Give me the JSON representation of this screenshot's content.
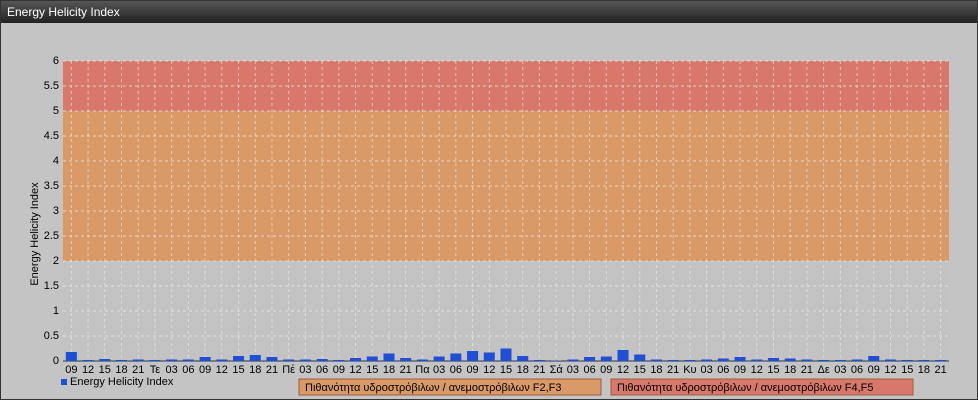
{
  "chart_data": {
    "type": "bar",
    "title": "Energy Helicity Index",
    "ylabel": "Energy Helicity Index",
    "categories": [
      "09",
      "12",
      "15",
      "18",
      "21",
      "Τε",
      "03",
      "06",
      "09",
      "12",
      "15",
      "18",
      "21",
      "Πέ",
      "03",
      "06",
      "09",
      "12",
      "15",
      "18",
      "21",
      "Πα",
      "03",
      "06",
      "09",
      "12",
      "15",
      "18",
      "21",
      "Σά",
      "03",
      "06",
      "09",
      "12",
      "15",
      "18",
      "21",
      "Κυ",
      "03",
      "06",
      "09",
      "12",
      "15",
      "18",
      "21",
      "Δε",
      "03",
      "06",
      "09",
      "12",
      "15",
      "18",
      "21"
    ],
    "series": [
      {
        "name": "Energy Helicity Index",
        "color": "#1f4fd8",
        "values": [
          0.18,
          0.02,
          0.04,
          0.02,
          0.03,
          0.02,
          0.03,
          0.03,
          0.08,
          0.03,
          0.1,
          0.12,
          0.08,
          0.03,
          0.03,
          0.04,
          0.02,
          0.06,
          0.09,
          0.15,
          0.06,
          0.03,
          0.09,
          0.15,
          0.2,
          0.17,
          0.25,
          0.1,
          0.02,
          0.01,
          0.03,
          0.08,
          0.09,
          0.22,
          0.13,
          0.03,
          0.02,
          0.02,
          0.03,
          0.05,
          0.08,
          0.03,
          0.06,
          0.05,
          0.03,
          0.02,
          0.02,
          0.03,
          0.1,
          0.03,
          0.02,
          0.02,
          0.02
        ]
      }
    ],
    "bands": [
      {
        "from": 0,
        "to": 2,
        "color": "#c3c3c3"
      },
      {
        "from": 2,
        "to": 5,
        "color": "#d99a68",
        "label": "Πιθανότητα υδροστρόβιλων / ανεμοστρόβιλων F2,F3"
      },
      {
        "from": 5,
        "to": 6,
        "color": "#d8786a",
        "label": "Πιθανότητα υδροστρόβιλων / ανεμοστρόβιλων F4,F5"
      }
    ],
    "ylim": [
      0,
      6
    ],
    "yticks": [
      0,
      0.5,
      1,
      1.5,
      2,
      2.5,
      3,
      3.5,
      4,
      4.5,
      5,
      5.5,
      6
    ],
    "grid": true
  }
}
